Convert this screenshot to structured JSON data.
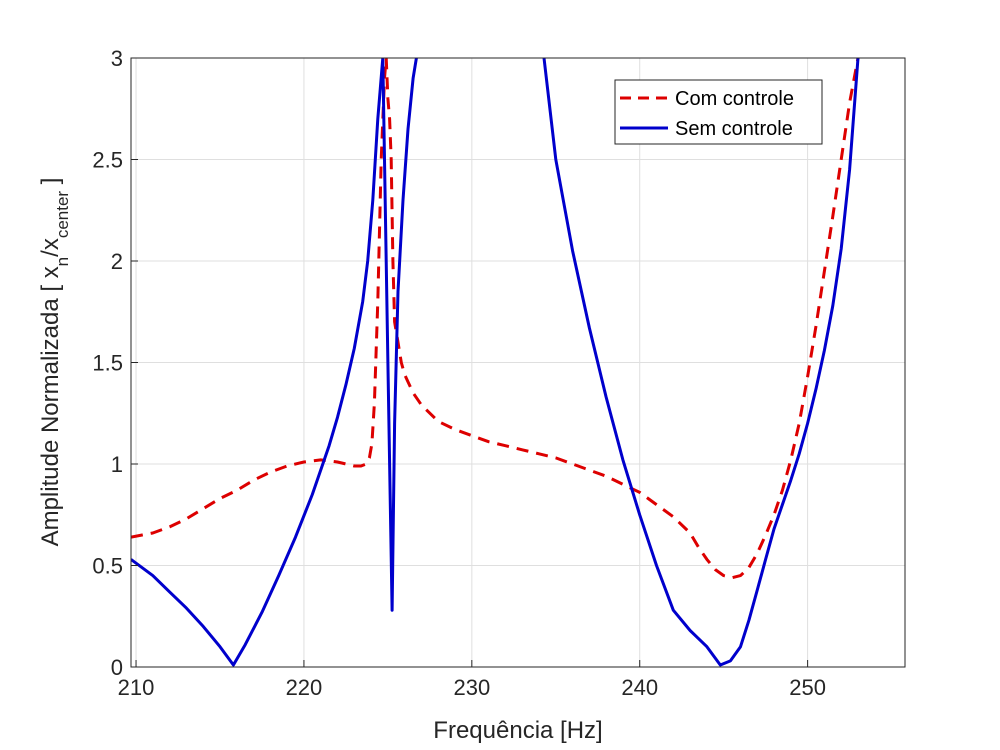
{
  "chart_data": {
    "type": "line",
    "title": "",
    "xlabel": "Frequência [Hz]",
    "ylabel": {
      "prefix": "Amplitude Normalizada [ x",
      "sub1": "n",
      "mid": "/x",
      "sub2": "center",
      "suffix": " ]"
    },
    "xlim": [
      209.7,
      255.8
    ],
    "ylim": [
      0,
      3
    ],
    "xticks": [
      "210",
      "220",
      "230",
      "240",
      "250"
    ],
    "yticks": [
      "0",
      "0.5",
      "1",
      "1.5",
      "2",
      "2.5",
      "3"
    ],
    "grid": true,
    "legend_position": "top-right",
    "series": [
      {
        "name": "Com controle",
        "color": "#dd0000",
        "style": "dashed",
        "x": [
          209.7,
          211,
          212,
          213,
          214,
          215,
          216,
          217,
          218,
          219,
          220,
          221,
          222,
          222.5,
          223,
          223.4,
          223.7,
          223.9,
          224.05,
          224.2,
          224.4,
          224.6,
          224.8,
          224.9,
          225.0,
          225.1,
          225.2,
          225.3,
          225.4,
          225.6,
          225.8,
          226,
          226.5,
          227,
          228,
          229,
          230,
          231,
          232,
          233,
          234,
          235,
          236,
          237,
          238,
          239,
          240,
          241,
          242,
          243,
          243.5,
          244,
          244.5,
          245,
          245.5,
          246,
          246.5,
          247,
          247.5,
          248,
          248.5,
          249,
          249.5,
          250,
          250.5,
          251,
          251.5,
          252,
          252.5,
          253
        ],
        "y": [
          0.64,
          0.66,
          0.69,
          0.73,
          0.78,
          0.83,
          0.87,
          0.92,
          0.96,
          0.99,
          1.01,
          1.02,
          1.01,
          1.0,
          0.99,
          0.99,
          1.0,
          1.03,
          1.1,
          1.3,
          1.8,
          2.5,
          2.9,
          3.0,
          2.8,
          2.7,
          2.5,
          2.0,
          1.7,
          1.6,
          1.5,
          1.44,
          1.35,
          1.29,
          1.21,
          1.17,
          1.14,
          1.11,
          1.09,
          1.07,
          1.05,
          1.03,
          1.0,
          0.97,
          0.94,
          0.9,
          0.86,
          0.8,
          0.74,
          0.66,
          0.59,
          0.53,
          0.48,
          0.45,
          0.44,
          0.45,
          0.49,
          0.56,
          0.65,
          0.75,
          0.87,
          1.02,
          1.2,
          1.43,
          1.68,
          1.95,
          2.22,
          2.5,
          2.78,
          3.0
        ]
      },
      {
        "name": "Sem controle",
        "color": "#0000cc",
        "style": "solid",
        "x": [
          209.7,
          211,
          212,
          213,
          214,
          215,
          215.8,
          216.5,
          217.5,
          218.5,
          219.5,
          220.5,
          221.5,
          222,
          222.5,
          223,
          223.5,
          223.8,
          224.1,
          224.4,
          224.7,
          225.0,
          225.25,
          225.4,
          225.6,
          225.9,
          226.2,
          226.5,
          226.7,
          null,
          234.3,
          235,
          236,
          237,
          238,
          239,
          240,
          241,
          242,
          243,
          244,
          244.8,
          245.4,
          246,
          246.5,
          247,
          247.5,
          248,
          248.5,
          249,
          249.5,
          250,
          250.5,
          251,
          251.5,
          252,
          252.5,
          253
        ],
        "y": [
          0.53,
          0.45,
          0.37,
          0.29,
          0.2,
          0.1,
          0.01,
          0.11,
          0.27,
          0.45,
          0.64,
          0.85,
          1.09,
          1.23,
          1.39,
          1.57,
          1.8,
          2.0,
          2.3,
          2.7,
          3.0,
          1.5,
          0.28,
          1.2,
          1.85,
          2.3,
          2.65,
          2.9,
          3.0,
          null,
          3.0,
          2.5,
          2.05,
          1.67,
          1.33,
          1.02,
          0.75,
          0.5,
          0.28,
          0.18,
          0.1,
          0.01,
          0.03,
          0.1,
          0.23,
          0.38,
          0.53,
          0.68,
          0.8,
          0.92,
          1.05,
          1.2,
          1.37,
          1.56,
          1.78,
          2.06,
          2.45,
          3.0
        ]
      }
    ]
  }
}
